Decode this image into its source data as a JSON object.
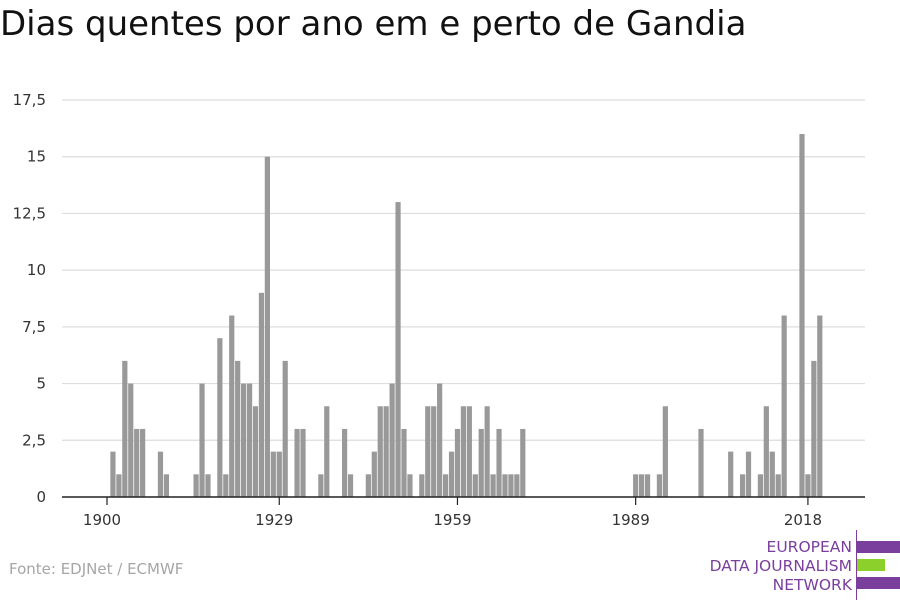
{
  "title": "Dias quentes por ano em e perto de Gandia",
  "source": "Fonte: EDJNet / ECMWF",
  "logo": {
    "lines": [
      "EUROPEAN",
      "DATA JOURNALISM",
      "NETWORK"
    ],
    "color_primary": "#7a3f9d",
    "color_accent": "#8cd12b"
  },
  "chart_data": {
    "type": "bar",
    "title": "Dias quentes por ano em e perto de Gandia",
    "xlabel": "",
    "ylabel": "",
    "bar_color": "#999999",
    "grid": true,
    "ylim": [
      0,
      17.5
    ],
    "yticks": [
      0,
      2.5,
      5,
      7.5,
      10,
      12.5,
      15,
      17.5
    ],
    "ytick_labels": [
      "0",
      "2,5",
      "5",
      "7,5",
      "10",
      "12,5",
      "15",
      "17,5"
    ],
    "xticks": [
      1900,
      1929,
      1959,
      1989,
      2018
    ],
    "x": [
      1900,
      1901,
      1902,
      1903,
      1904,
      1905,
      1906,
      1907,
      1908,
      1909,
      1910,
      1911,
      1912,
      1913,
      1914,
      1915,
      1916,
      1917,
      1918,
      1919,
      1920,
      1921,
      1922,
      1923,
      1924,
      1925,
      1926,
      1927,
      1928,
      1929,
      1930,
      1931,
      1932,
      1933,
      1934,
      1935,
      1936,
      1937,
      1938,
      1939,
      1940,
      1941,
      1942,
      1943,
      1944,
      1945,
      1946,
      1947,
      1948,
      1949,
      1950,
      1951,
      1952,
      1953,
      1954,
      1955,
      1956,
      1957,
      1958,
      1959,
      1960,
      1961,
      1962,
      1963,
      1964,
      1965,
      1966,
      1967,
      1968,
      1969,
      1970,
      1971,
      1972,
      1973,
      1974,
      1975,
      1976,
      1977,
      1978,
      1979,
      1980,
      1981,
      1982,
      1983,
      1984,
      1985,
      1986,
      1987,
      1988,
      1989,
      1990,
      1991,
      1992,
      1993,
      1994,
      1995,
      1996,
      1997,
      1998,
      1999,
      2000,
      2001,
      2002,
      2003,
      2004,
      2005,
      2006,
      2007,
      2008,
      2009,
      2010,
      2011,
      2012,
      2013,
      2014,
      2015,
      2016,
      2017,
      2018,
      2019,
      2020
    ],
    "values": [
      0,
      2,
      1,
      6,
      5,
      3,
      3,
      0,
      0,
      2,
      1,
      0,
      0,
      0,
      0,
      1,
      5,
      1,
      0,
      7,
      1,
      8,
      6,
      5,
      5,
      4,
      9,
      15,
      2,
      2,
      6,
      0,
      3,
      3,
      0,
      0,
      1,
      4,
      0,
      0,
      3,
      1,
      0,
      0,
      1,
      2,
      4,
      4,
      5,
      13,
      3,
      1,
      0,
      1,
      4,
      4,
      5,
      1,
      2,
      3,
      4,
      4,
      1,
      3,
      4,
      1,
      3,
      1,
      1,
      1,
      3,
      0,
      0,
      0,
      0,
      0,
      0,
      0,
      0,
      0,
      0,
      0,
      0,
      0,
      0,
      0,
      0,
      0,
      0,
      1,
      1,
      1,
      0,
      1,
      4,
      0,
      0,
      0,
      0,
      0,
      3,
      0,
      0,
      0,
      0,
      2,
      0,
      1,
      2,
      0,
      1,
      4,
      2,
      1,
      8,
      0,
      0,
      16,
      1,
      6,
      8
    ]
  }
}
